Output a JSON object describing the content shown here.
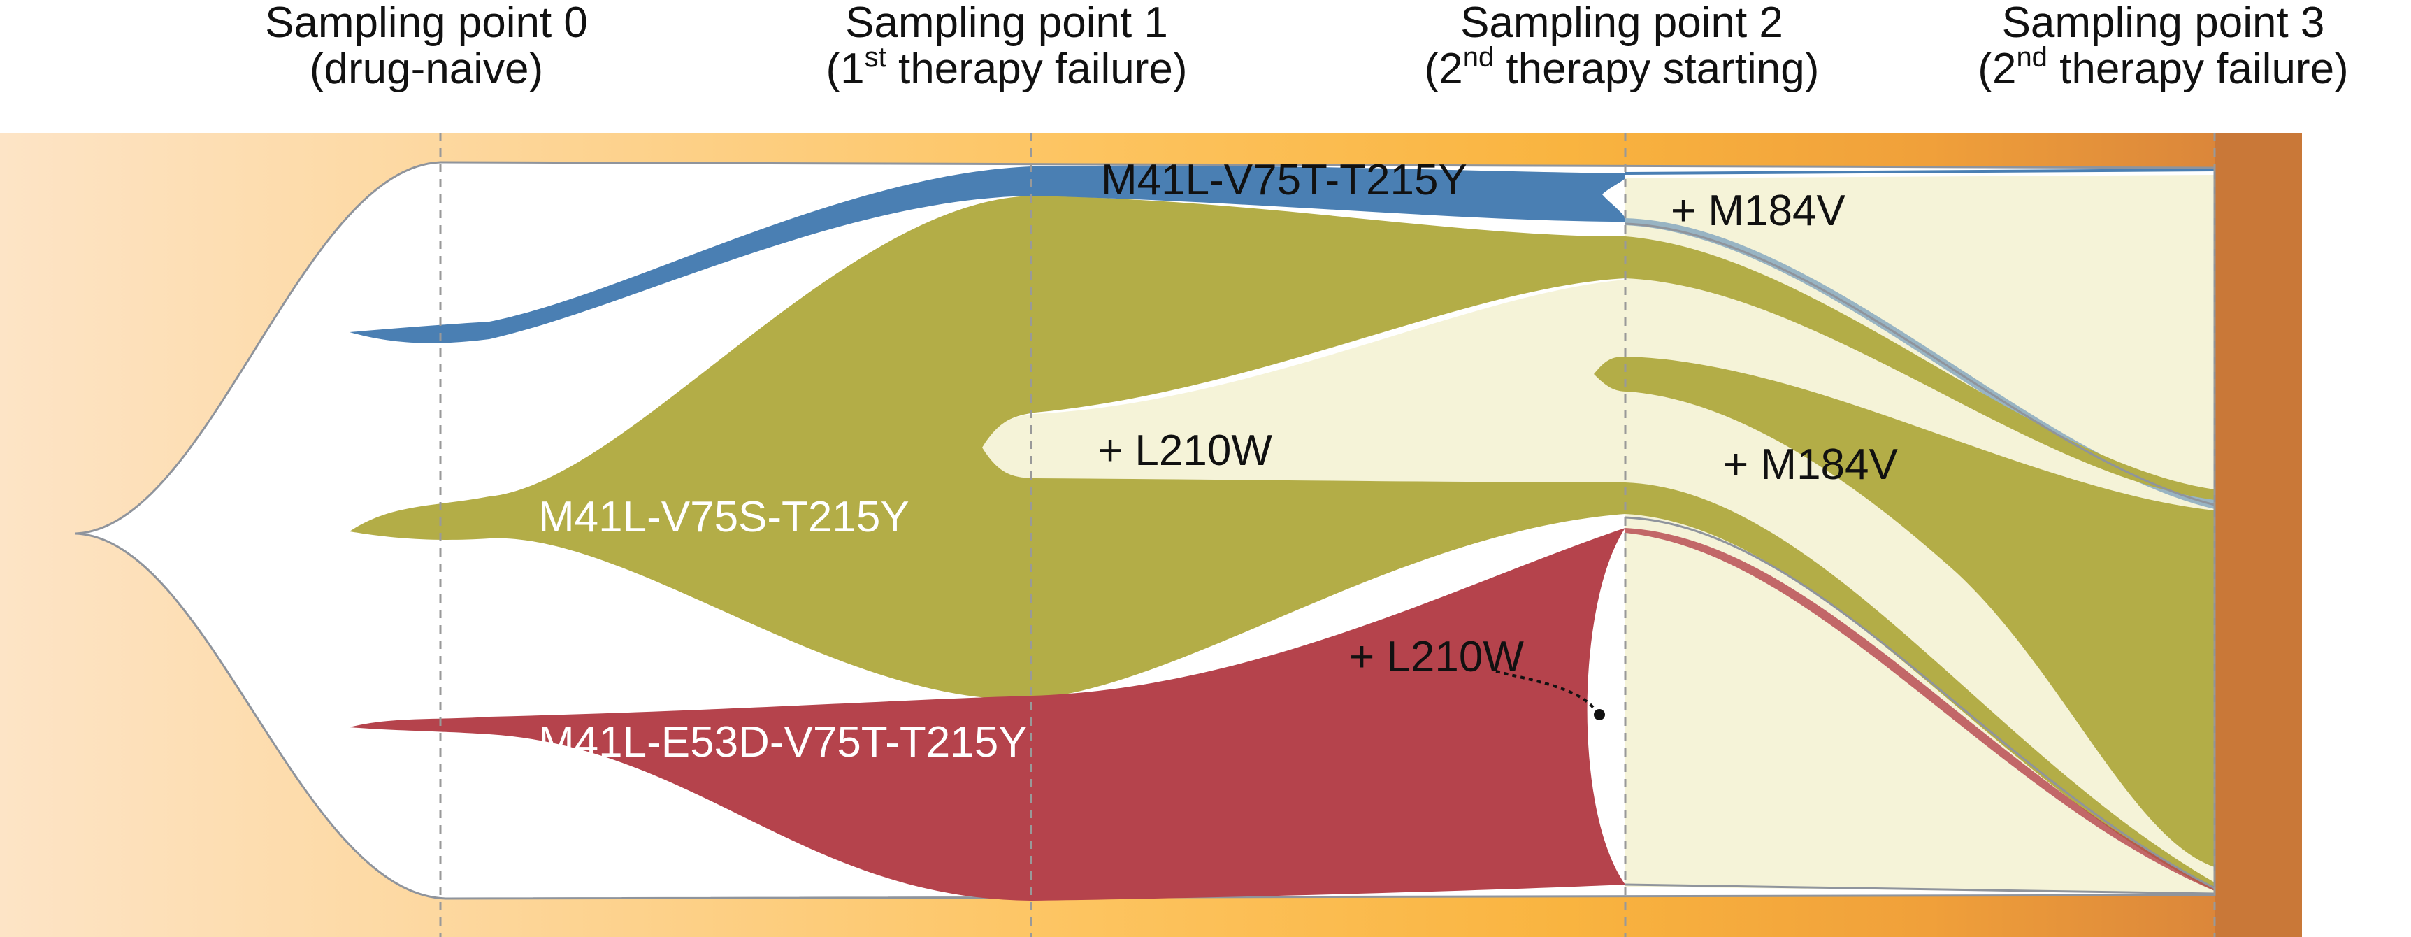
{
  "sampling_points": [
    {
      "title": "Sampling point 0",
      "sub_pre": "(drug-naive)",
      "sup": "",
      "sub_post": ""
    },
    {
      "title": "Sampling point 1",
      "sub_pre": "(1",
      "sup": "st",
      "sub_post": " therapy failure)"
    },
    {
      "title": "Sampling point 2",
      "sub_pre": "(2",
      "sup": "nd",
      "sub_post": " therapy starting)"
    },
    {
      "title": "Sampling point 3",
      "sub_pre": "(2",
      "sup": "nd",
      "sub_post": " therapy failure)"
    }
  ],
  "lineages": {
    "blue": {
      "label": "M41L-V75T-T215Y",
      "color": "#4a7fb3"
    },
    "olive": {
      "label": "M41L-V75S-T215Y",
      "color": "#b3ad47"
    },
    "red": {
      "label": "M41L-E53D-V75T-T215Y",
      "color": "#b5434c"
    }
  },
  "mutations": {
    "m184v_blue": "+ M184V",
    "l210w_olive": "+ L210W",
    "m184v_olive": "+ M184V",
    "l210w_red": "+ L210W"
  },
  "colors": {
    "light_fill": "#f5f3d8",
    "bg_peach": "#fde3c2",
    "bg_yellow": "#fdc25c",
    "bg_orange": "#f2a33a",
    "bg_brown": "#cc7a38",
    "outline": "#9aa0a8",
    "divider": "#999999"
  }
}
